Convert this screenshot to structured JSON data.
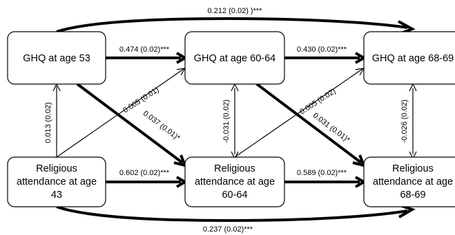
{
  "nodes": {
    "ghq_53": {
      "lines": [
        "GHQ at age 53"
      ]
    },
    "ghq_60_64": {
      "lines": [
        "GHQ at age 60-64"
      ]
    },
    "ghq_68_69": {
      "lines": [
        "GHQ at age 68-69"
      ]
    },
    "rel_43": {
      "lines": [
        "Religious",
        "attendance at age",
        "43"
      ]
    },
    "rel_60_64": {
      "lines": [
        "Religious",
        "attendance at age",
        "60-64"
      ]
    },
    "rel_68_69": {
      "lines": [
        "Religious",
        "attendance at age",
        "68-69"
      ]
    }
  },
  "edges": {
    "ghq53_to_ghq6869": {
      "label": "0.212 (0.02) )***"
    },
    "ghq53_to_ghq6064": {
      "label": "0.474 (0.02)***"
    },
    "ghq6064_to_ghq6869": {
      "label": "0.430 (0.02)***"
    },
    "rel43_to_ghq53": {
      "label": "0.013 (0.02)"
    },
    "rel43_to_ghq6064": {
      "label": "0.005 (0.01)"
    },
    "ghq53_to_rel6064": {
      "label": "0.037 (0.01)*"
    },
    "rel6064_ghq6064": {
      "label": "-0.031 (0.02)"
    },
    "rel6064_to_ghq6869": {
      "label": "0.005 (0.02)"
    },
    "ghq6064_to_rel6869": {
      "label": "0.031 (0.01)*"
    },
    "ghq6869_rel6869": {
      "label": "-0.026 (0.02)"
    },
    "rel43_to_rel6064": {
      "label": "0.602 (0.02)***"
    },
    "rel6064_to_rel6869": {
      "label": "0.589 (0.02)***"
    },
    "rel43_to_rel6869": {
      "label": "0.237 (0.02)***"
    }
  }
}
